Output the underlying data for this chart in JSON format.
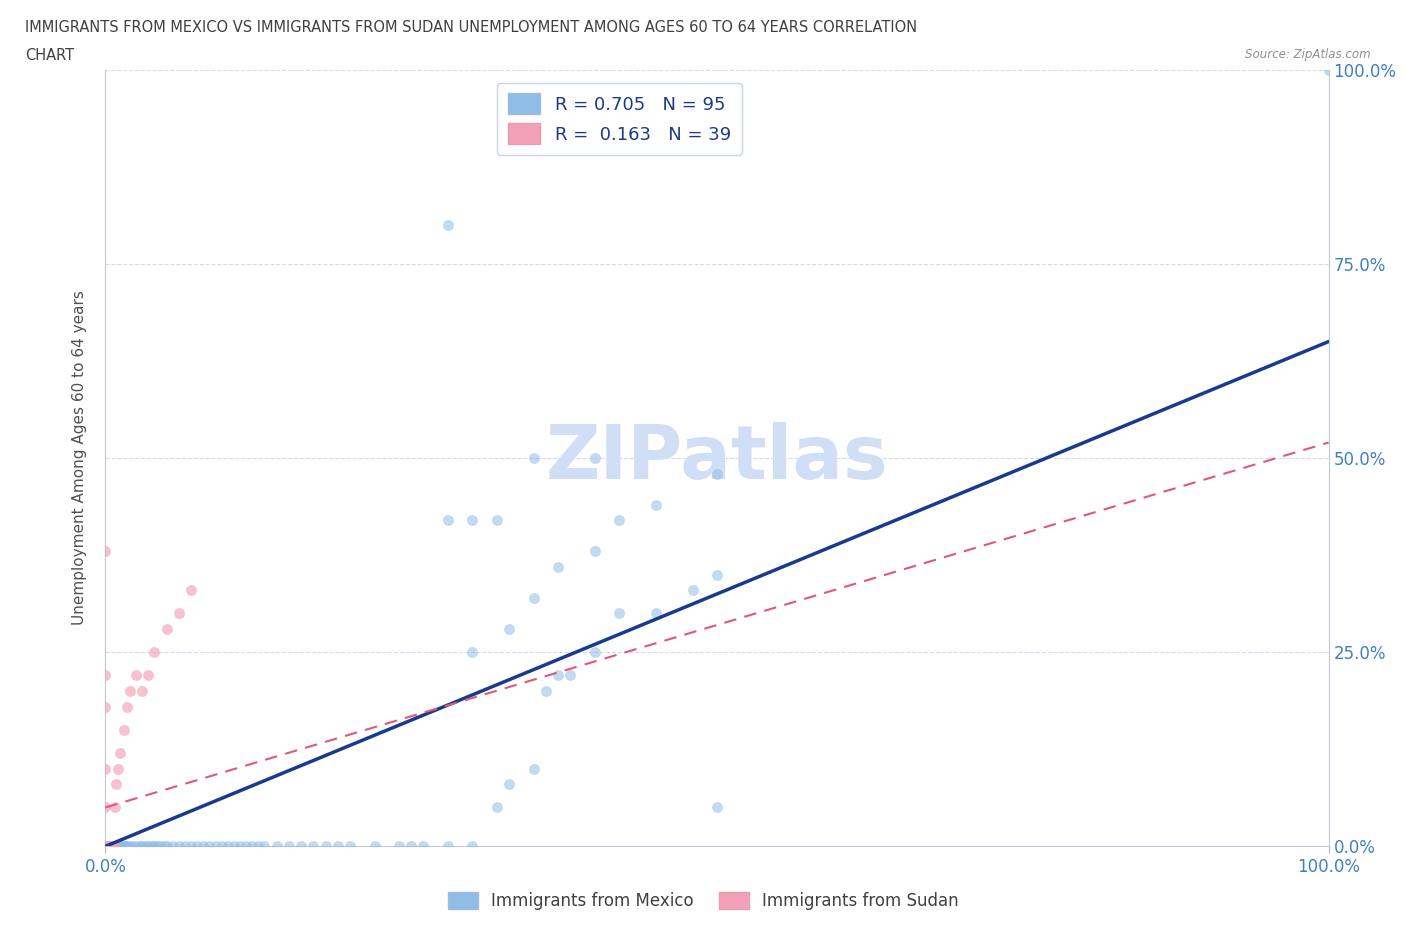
{
  "title_line1": "IMMIGRANTS FROM MEXICO VS IMMIGRANTS FROM SUDAN UNEMPLOYMENT AMONG AGES 60 TO 64 YEARS CORRELATION",
  "title_line2": "CHART",
  "source_text": "Source: ZipAtlas.com",
  "ylabel": "Unemployment Among Ages 60 to 64 years",
  "ytick_labels": [
    "0.0%",
    "25.0%",
    "50.0%",
    "75.0%",
    "100.0%"
  ],
  "ytick_values": [
    0.0,
    0.25,
    0.5,
    0.75,
    1.0
  ],
  "xlim": [
    0.0,
    1.0
  ],
  "ylim": [
    0.0,
    1.0
  ],
  "mexico_color": "#90bce8",
  "sudan_color": "#f4a0b8",
  "regression_mexico_color": "#1a3a8c",
  "regression_sudan_color": "#e05878",
  "regression_mexico_x0": 0.0,
  "regression_mexico_y0": 0.0,
  "regression_mexico_x1": 1.0,
  "regression_mexico_y1": 0.65,
  "regression_sudan_x0": 0.0,
  "regression_sudan_y0": 0.05,
  "regression_sudan_x1": 1.0,
  "regression_sudan_y1": 0.52,
  "watermark_color": "#d0dff5",
  "background_color": "#ffffff",
  "title_color": "#404040",
  "axis_label_color": "#4080c0",
  "mexico_R": 0.705,
  "mexico_N": 95,
  "sudan_R": 0.163,
  "sudan_N": 39,
  "mexico_x": [
    0.0,
    0.0,
    0.0,
    0.0,
    0.0,
    0.0,
    0.0,
    0.0,
    0.0,
    0.0,
    0.002,
    0.003,
    0.004,
    0.005,
    0.006,
    0.007,
    0.008,
    0.009,
    0.01,
    0.011,
    0.012,
    0.013,
    0.014,
    0.015,
    0.016,
    0.018,
    0.02,
    0.022,
    0.025,
    0.028,
    0.03,
    0.033,
    0.035,
    0.038,
    0.04,
    0.042,
    0.045,
    0.048,
    0.05,
    0.055,
    0.06,
    0.065,
    0.07,
    0.075,
    0.08,
    0.085,
    0.09,
    0.095,
    0.1,
    0.105,
    0.11,
    0.115,
    0.12,
    0.125,
    0.13,
    0.14,
    0.15,
    0.16,
    0.17,
    0.18,
    0.19,
    0.2,
    0.22,
    0.24,
    0.25,
    0.26,
    0.28,
    0.3,
    0.32,
    0.33,
    0.35,
    0.36,
    0.37,
    0.38,
    0.4,
    0.42,
    0.45,
    0.48,
    0.5,
    0.3,
    0.33,
    0.35,
    0.37,
    0.4,
    0.42,
    0.45,
    0.5,
    0.28,
    0.3,
    0.32,
    0.35,
    0.4,
    0.5,
    1.0,
    0.28
  ],
  "mexico_y": [
    0.0,
    0.0,
    0.0,
    0.0,
    0.0,
    0.0,
    0.0,
    0.0,
    0.0,
    0.0,
    0.0,
    0.0,
    0.0,
    0.0,
    0.0,
    0.0,
    0.0,
    0.0,
    0.0,
    0.0,
    0.0,
    0.0,
    0.0,
    0.0,
    0.0,
    0.0,
    0.0,
    0.0,
    0.0,
    0.0,
    0.0,
    0.0,
    0.0,
    0.0,
    0.0,
    0.0,
    0.0,
    0.0,
    0.0,
    0.0,
    0.0,
    0.0,
    0.0,
    0.0,
    0.0,
    0.0,
    0.0,
    0.0,
    0.0,
    0.0,
    0.0,
    0.0,
    0.0,
    0.0,
    0.0,
    0.0,
    0.0,
    0.0,
    0.0,
    0.0,
    0.0,
    0.0,
    0.0,
    0.0,
    0.0,
    0.0,
    0.0,
    0.0,
    0.05,
    0.08,
    0.1,
    0.2,
    0.22,
    0.22,
    0.25,
    0.3,
    0.3,
    0.33,
    0.35,
    0.25,
    0.28,
    0.32,
    0.36,
    0.38,
    0.42,
    0.44,
    0.48,
    0.42,
    0.42,
    0.42,
    0.5,
    0.5,
    0.05,
    1.0,
    0.8
  ],
  "sudan_x": [
    0.0,
    0.0,
    0.0,
    0.0,
    0.0,
    0.0,
    0.0,
    0.0,
    0.0,
    0.0,
    0.001,
    0.001,
    0.002,
    0.002,
    0.003,
    0.003,
    0.004,
    0.005,
    0.006,
    0.007,
    0.008,
    0.009,
    0.01,
    0.012,
    0.015,
    0.018,
    0.02,
    0.025,
    0.03,
    0.035,
    0.04,
    0.05,
    0.06,
    0.07,
    0.0,
    0.0,
    0.0,
    0.0,
    0.0
  ],
  "sudan_y": [
    0.0,
    0.0,
    0.0,
    0.0,
    0.0,
    0.0,
    0.0,
    0.0,
    0.0,
    0.0,
    0.0,
    0.0,
    0.0,
    0.0,
    0.0,
    0.0,
    0.0,
    0.0,
    0.0,
    0.0,
    0.05,
    0.08,
    0.1,
    0.12,
    0.15,
    0.18,
    0.2,
    0.22,
    0.2,
    0.22,
    0.25,
    0.28,
    0.3,
    0.33,
    0.38,
    0.22,
    0.18,
    0.1,
    0.05
  ]
}
